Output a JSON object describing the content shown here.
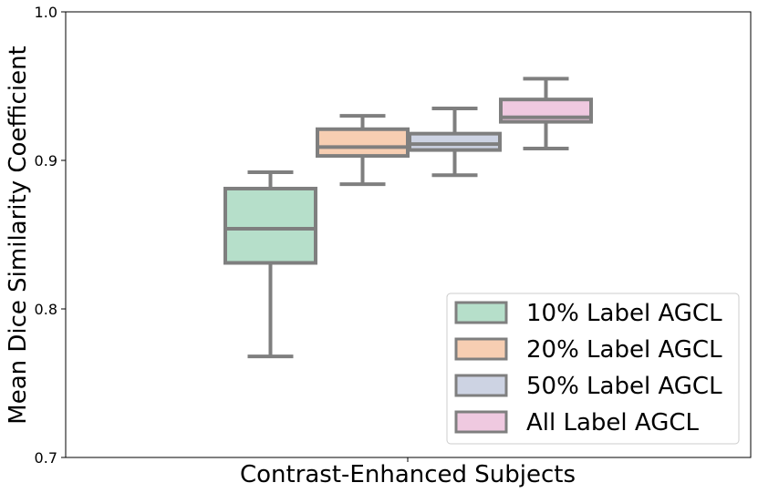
{
  "chart_data": {
    "type": "box",
    "xlabel": "Contrast-Enhanced Subjects",
    "ylabel": "Mean Dice Similarity Coefficient",
    "ylim": [
      0.7,
      1.0
    ],
    "yticks": [
      "0.7",
      "0.8",
      "0.9",
      "1.0"
    ],
    "series": [
      {
        "name": "10% Label AGCL",
        "color": "#b6dfca",
        "whisker_low": 0.768,
        "q1": 0.831,
        "median": 0.854,
        "q3": 0.881,
        "whisker_high": 0.892
      },
      {
        "name": "20% Label AGCL",
        "color": "#f7ceb2",
        "whisker_low": 0.884,
        "q1": 0.903,
        "median": 0.909,
        "q3": 0.921,
        "whisker_high": 0.93
      },
      {
        "name": "50% Label AGCL",
        "color": "#cdd3e3",
        "whisker_low": 0.89,
        "q1": 0.907,
        "median": 0.911,
        "q3": 0.918,
        "whisker_high": 0.935
      },
      {
        "name": "All Label AGCL",
        "color": "#efc9e0",
        "whisker_low": 0.908,
        "q1": 0.926,
        "median": 0.929,
        "q3": 0.941,
        "whisker_high": 0.955
      }
    ],
    "legend_position": "bottom-right",
    "grid": false,
    "box_edge_color": "#7f7f7f"
  }
}
